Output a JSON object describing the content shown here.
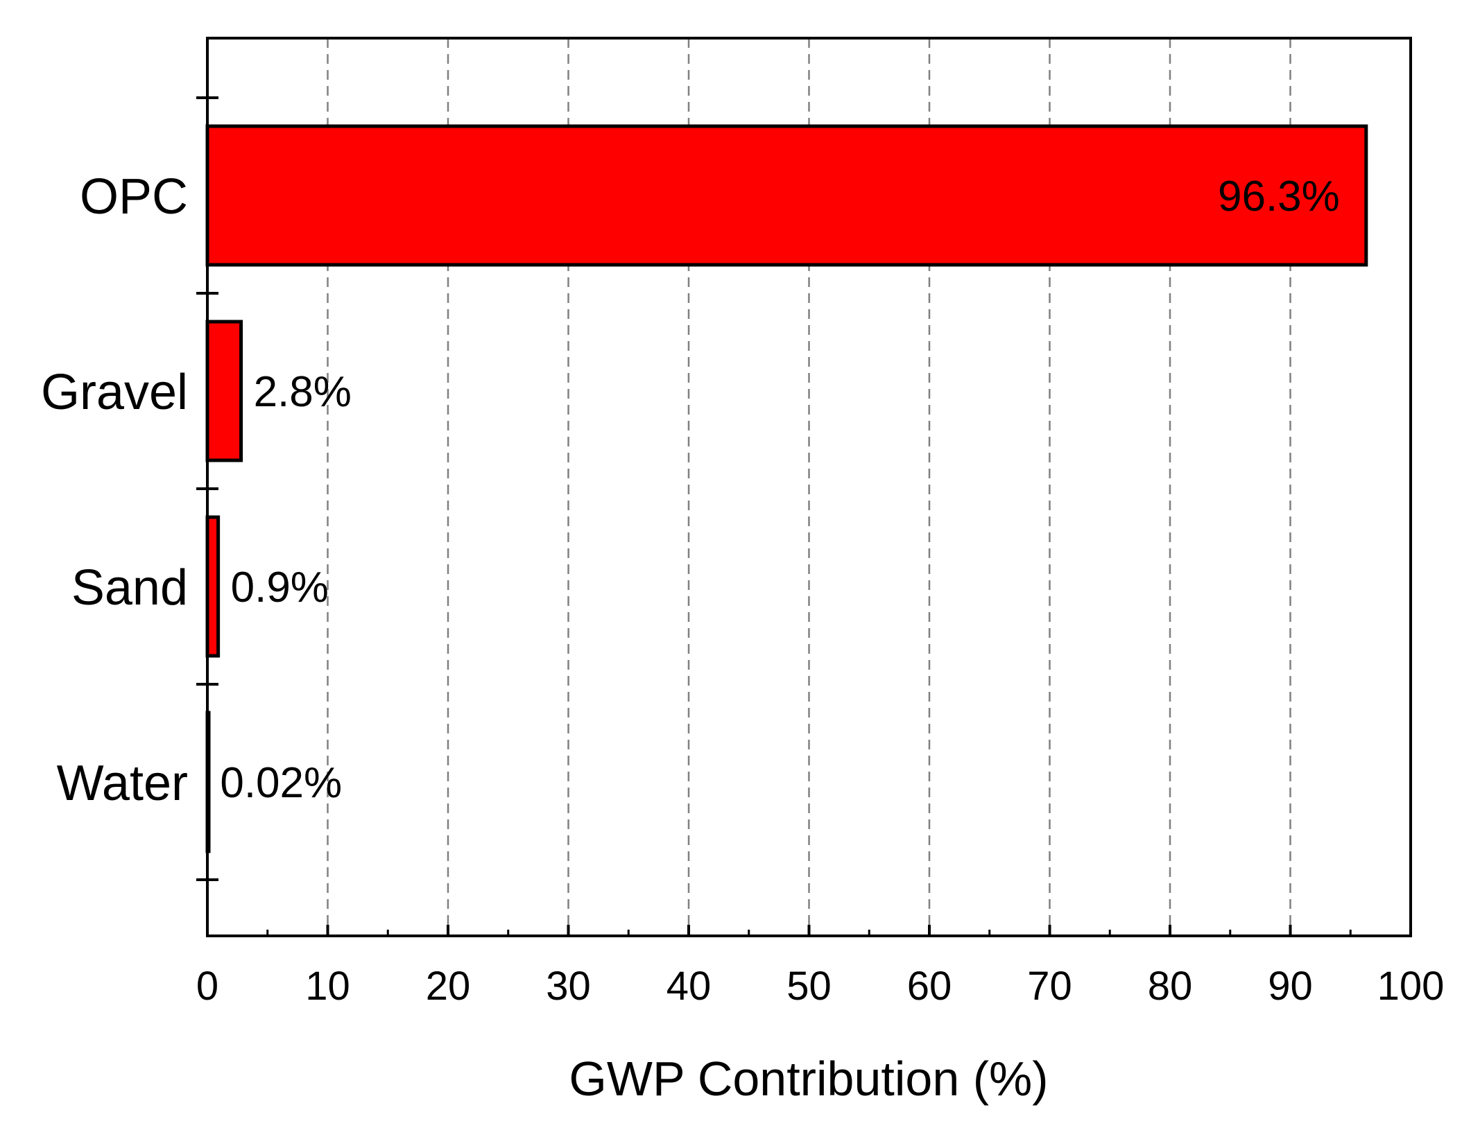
{
  "chart_data": {
    "type": "bar",
    "orientation": "horizontal",
    "categories": [
      "OPC",
      "Gravel",
      "Sand",
      "Water"
    ],
    "values": [
      96.3,
      2.8,
      0.9,
      0.02
    ],
    "data_labels": [
      "96.3%",
      "2.8%",
      "0.9%",
      "0.02%"
    ],
    "title": "",
    "xlabel": "GWP Contribution (%)",
    "ylabel": "",
    "xlim": [
      0,
      100
    ],
    "xticks": [
      0,
      10,
      20,
      30,
      40,
      50,
      60,
      70,
      80,
      90,
      100
    ],
    "x_minor_step": 5,
    "grid": "vertical dashed",
    "legend": "none",
    "bar_color": "#ff0000",
    "bar_edge_color": "#000000"
  }
}
